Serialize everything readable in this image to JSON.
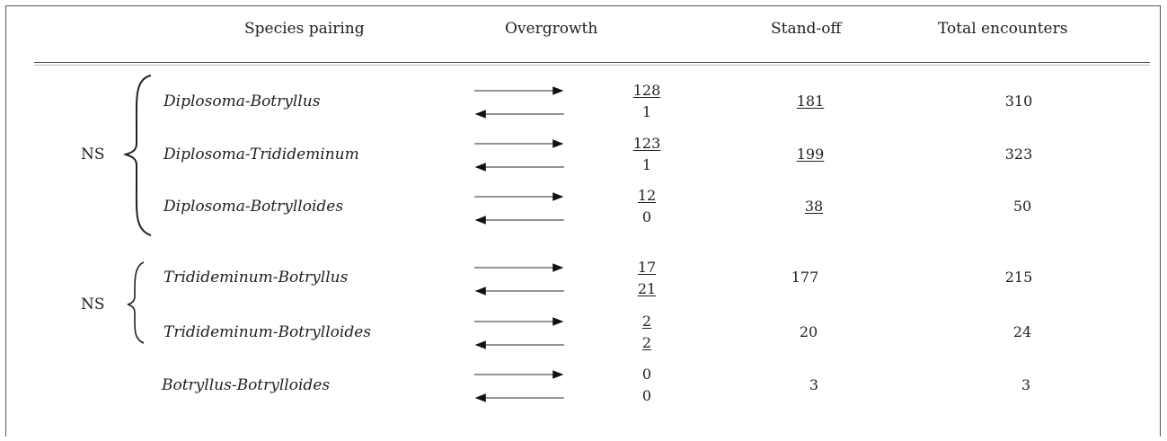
{
  "headers": {
    "species_pairing": "Species pairing",
    "overgrowth": "Overgrowth",
    "standoff": "Stand-off",
    "total": "Total encounters"
  },
  "groups": [
    {
      "label": "NS"
    },
    {
      "label": "NS"
    }
  ],
  "rows": [
    {
      "species": "Diplosoma-Botryllus",
      "over_top": "128",
      "over_bottom": "1",
      "standoff": "181",
      "total": "310"
    },
    {
      "species": "Diplosoma-Tridideminum",
      "over_top": "123",
      "over_bottom": "1",
      "standoff": "199",
      "total": "323"
    },
    {
      "species": "Diplosoma-Botrylloides",
      "over_top": "12",
      "over_bottom": "0",
      "standoff": "38",
      "total": "50"
    },
    {
      "species": "Tridideminum-Botryllus",
      "over_top": "17",
      "over_bottom": "21",
      "standoff": "177",
      "total": "215"
    },
    {
      "species": "Tridideminum-Botrylloides",
      "over_top": "2",
      "over_bottom": "2",
      "standoff": "20",
      "total": "24"
    },
    {
      "species": "Botryllus-Botrylloides",
      "over_top": "0",
      "over_bottom": "0",
      "standoff": "3",
      "total": "3"
    }
  ]
}
